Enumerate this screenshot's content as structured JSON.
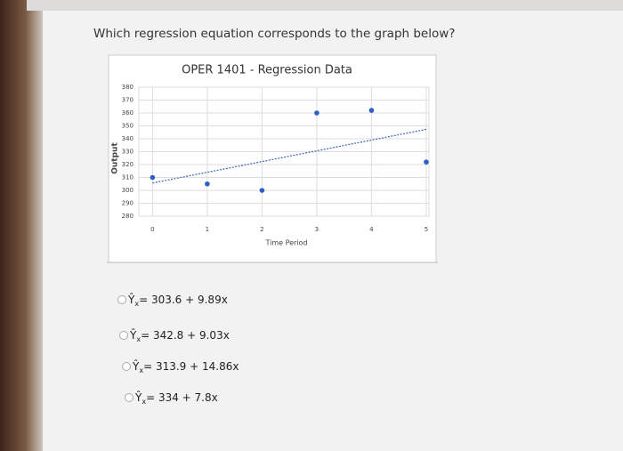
{
  "question": "Which regression equation corresponds to the graph below?",
  "chart_data": {
    "type": "scatter",
    "title": "OPER 1401 - Regression Data",
    "x_label": "Time Period",
    "y_label": "Output",
    "series": [
      {
        "x": [
          0,
          1,
          2,
          3,
          4,
          5
        ],
        "values": [
          310,
          305,
          300,
          360,
          362,
          322
        ],
        "color": "#2f5fc4"
      }
    ],
    "trendline": {
      "x": [
        0,
        5
      ],
      "values": [
        305.7,
        347.3
      ],
      "color": "#4a6fb8"
    },
    "xlim": [
      -0.25,
      5.05
    ],
    "ylim": [
      280,
      380
    ],
    "xticks": [
      0,
      1,
      2,
      3,
      4,
      5
    ],
    "yticks": [
      280,
      290,
      300,
      310,
      320,
      330,
      340,
      350,
      360,
      370,
      380
    ],
    "grid": true
  },
  "options": [
    {
      "symbol": "Ŷ",
      "subscript": "x",
      "equation": "= 303.6 + 9.89x"
    },
    {
      "symbol": "Ŷ",
      "subscript": "x",
      "equation": "= 342.8 + 9.03x"
    },
    {
      "symbol": "Ŷ",
      "subscript": "x",
      "equation": "= 313.9 + 14.86x"
    },
    {
      "symbol": "Ŷ",
      "subscript": "x",
      "equation": "= 334 + 7.8x"
    }
  ]
}
